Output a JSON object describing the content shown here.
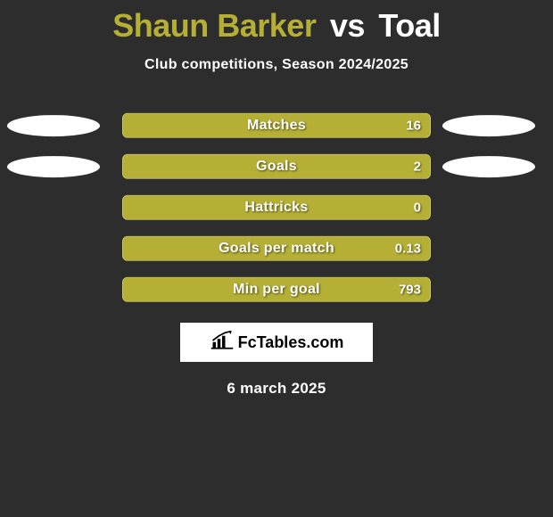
{
  "header": {
    "player1": "Shaun Barker",
    "vs": "vs",
    "player2": "Toal",
    "player1_color": "#b5b035",
    "player2_color": "#ffffff",
    "vs_color": "#ffffff"
  },
  "subtitle": "Club competitions, Season 2024/2025",
  "stats": {
    "bar_bg_color": "#b5b035",
    "bar_fill_color": "#b5b035",
    "text_color": "#ffffff",
    "ellipse_left_color": "#ffffff",
    "ellipse_right_color": "#ffffff",
    "rows": [
      {
        "label": "Matches",
        "value_right": "16",
        "show_left_ellipse": true,
        "show_right_ellipse": true,
        "fill_pct": 100
      },
      {
        "label": "Goals",
        "value_right": "2",
        "show_left_ellipse": true,
        "show_right_ellipse": true,
        "fill_pct": 100
      },
      {
        "label": "Hattricks",
        "value_right": "0",
        "show_left_ellipse": false,
        "show_right_ellipse": false,
        "fill_pct": 100
      },
      {
        "label": "Goals per match",
        "value_right": "0.13",
        "show_left_ellipse": false,
        "show_right_ellipse": false,
        "fill_pct": 100
      },
      {
        "label": "Min per goal",
        "value_right": "793",
        "show_left_ellipse": false,
        "show_right_ellipse": false,
        "fill_pct": 100
      }
    ]
  },
  "brand": {
    "text": "FcTables.com",
    "bg_color": "#ffffff",
    "text_color": "#000000"
  },
  "date": "6 march 2025",
  "background_color": "#2d2d2d"
}
